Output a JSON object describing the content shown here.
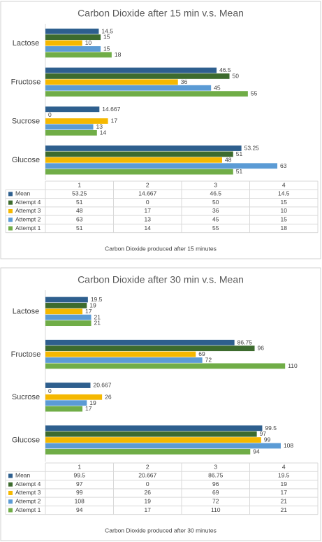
{
  "chart_data": [
    {
      "type": "bar",
      "orientation": "horizontal",
      "title": "Carbon Dioxide after 15 min v.s. Mean",
      "x_label": "Carbon Dioxide produced after 15 minutes",
      "categories": [
        "Glucose",
        "Sucrose",
        "Fructose",
        "Lactose"
      ],
      "table_headers": [
        "1",
        "2",
        "3",
        "4"
      ],
      "xlim": [
        0,
        74
      ],
      "series": [
        {
          "name": "Mean",
          "color": "#2e5f8e",
          "values": [
            53.25,
            14.667,
            46.5,
            14.5
          ]
        },
        {
          "name": "Attempt 4",
          "color": "#3d6b2e",
          "values": [
            51,
            0,
            50,
            15
          ]
        },
        {
          "name": "Attempt 3",
          "color": "#f5b800",
          "values": [
            48,
            17,
            36,
            10
          ]
        },
        {
          "name": "Attempt 2",
          "color": "#5b9bd5",
          "values": [
            63,
            13,
            45,
            15
          ]
        },
        {
          "name": "Attempt 1",
          "color": "#70ad47",
          "values": [
            51,
            14,
            55,
            18
          ]
        }
      ]
    },
    {
      "type": "bar",
      "orientation": "horizontal",
      "title": "Carbon Dioxide after 30 min v.s. Mean",
      "x_label": "Carbon Dioxide produced after 30 minutes",
      "categories": [
        "Glucose",
        "Sucrose",
        "Fructose",
        "Lactose"
      ],
      "table_headers": [
        "1",
        "2",
        "3",
        "4"
      ],
      "xlim": [
        0,
        125
      ],
      "series": [
        {
          "name": "Mean",
          "color": "#2e5f8e",
          "values": [
            99.5,
            20.667,
            86.75,
            19.5
          ]
        },
        {
          "name": "Attempt 4",
          "color": "#3d6b2e",
          "values": [
            97,
            0,
            96,
            19
          ]
        },
        {
          "name": "Attempt 3",
          "color": "#f5b800",
          "values": [
            99,
            26,
            69,
            17
          ]
        },
        {
          "name": "Attempt 2",
          "color": "#5b9bd5",
          "values": [
            108,
            19,
            72,
            21
          ]
        },
        {
          "name": "Attempt 1",
          "color": "#70ad47",
          "values": [
            94,
            17,
            110,
            21
          ]
        }
      ]
    }
  ]
}
